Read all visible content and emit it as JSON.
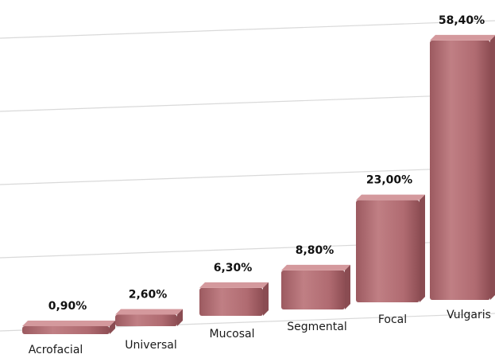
{
  "chart_data": {
    "type": "bar",
    "title": "",
    "xlabel": "",
    "ylabel": "",
    "ylim": [
      0,
      60
    ],
    "grid": true,
    "categories": [
      "Acrofacial",
      "Universal",
      "Mucosal",
      "Segmental",
      "Focal",
      "Vulgaris"
    ],
    "values": [
      0.9,
      2.6,
      6.3,
      8.8,
      23.0,
      58.4
    ],
    "value_labels": [
      "0,90%",
      "2,60%",
      "6,30%",
      "8,80%",
      "23,00%",
      "58,40%"
    ],
    "colors": {
      "bar": "#b87076",
      "bar_top": "#d4999d",
      "bar_side": "#8a4c52",
      "grid": "#d9d9d9"
    }
  }
}
